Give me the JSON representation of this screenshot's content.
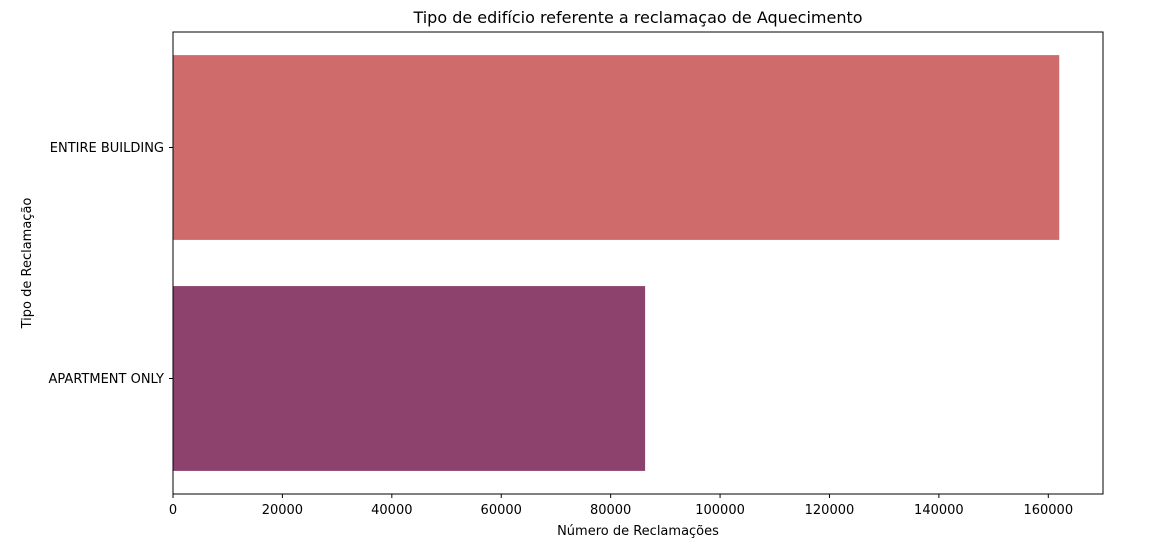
{
  "chart_data": {
    "type": "bar",
    "orientation": "horizontal",
    "title": "Tipo de edifício referente a reclamaçao de Aquecimento",
    "xlabel": "Número de Reclamações",
    "ylabel": "Tipo de Reclamação",
    "categories": [
      "ENTIRE BUILDING",
      "APARTMENT ONLY"
    ],
    "values": [
      162000,
      86300
    ],
    "colors": [
      "#cf6b6b",
      "#8c426c"
    ],
    "xlim": [
      0,
      170000
    ],
    "xticks": [
      0,
      20000,
      40000,
      60000,
      80000,
      100000,
      120000,
      140000,
      160000
    ],
    "xtick_labels": [
      "0",
      "20000",
      "40000",
      "60000",
      "80000",
      "100000",
      "120000",
      "140000",
      "160000"
    ],
    "grid": false,
    "legend": "none"
  }
}
